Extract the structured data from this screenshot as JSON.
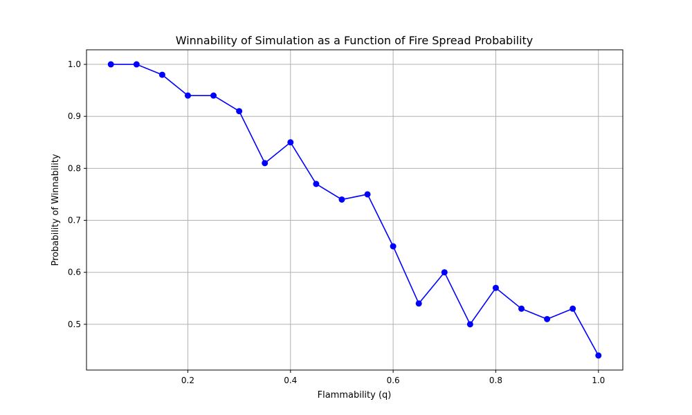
{
  "chart_data": {
    "type": "line",
    "title": "Winnability of Simulation as a Function of Fire Spread Probability",
    "xlabel": "Flammability (q)",
    "ylabel": "Probability of Winnability",
    "xlim": [
      0.0025,
      1.0475
    ],
    "ylim": [
      0.412,
      1.028
    ],
    "x_ticks": [
      0.2,
      0.4,
      0.6,
      0.8,
      1.0
    ],
    "y_ticks": [
      0.5,
      0.6,
      0.7,
      0.8,
      0.9,
      1.0
    ],
    "x_tick_labels": [
      "0.2",
      "0.4",
      "0.6",
      "0.8",
      "1.0"
    ],
    "y_tick_labels": [
      "0.5",
      "0.6",
      "0.7",
      "0.8",
      "0.9",
      "1.0"
    ],
    "grid": true,
    "series": [
      {
        "color": "#0000ff",
        "marker": "circle",
        "x": [
          0.05,
          0.1,
          0.15,
          0.2,
          0.25,
          0.3,
          0.35,
          0.4,
          0.45,
          0.5,
          0.55,
          0.6,
          0.65,
          0.7,
          0.75,
          0.8,
          0.85,
          0.9,
          0.95,
          1.0
        ],
        "y": [
          1.0,
          1.0,
          0.98,
          0.94,
          0.94,
          0.91,
          0.81,
          0.85,
          0.77,
          0.74,
          0.75,
          0.65,
          0.54,
          0.6,
          0.5,
          0.57,
          0.53,
          0.51,
          0.53,
          0.44
        ]
      }
    ]
  }
}
